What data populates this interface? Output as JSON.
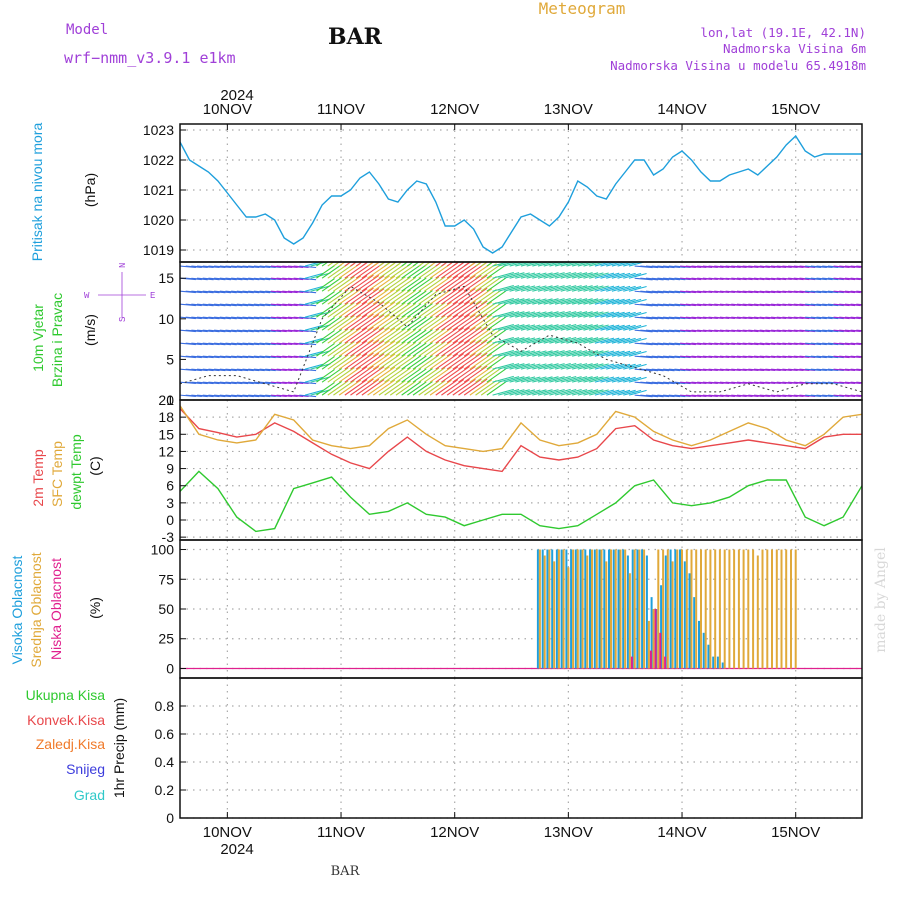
{
  "header": {
    "model_label": "Model",
    "model_value": "wrf−nmm_v3.9.1  e1km",
    "station_title": "BAR",
    "meteogram_title": "Meteogram",
    "location_coords": "lon,lat (19.1E, 42.1N)",
    "elevation": "Nadmorska Visina 6m",
    "model_elevation": "Nadmorska Visina u modelu 65.4918m",
    "year_top": "2024",
    "year_bottom": "2024",
    "footer_station": "BAR",
    "credit": "made by Angel"
  },
  "time_axis": {
    "start": "2024-11-09 14:00",
    "end": "2024-11-15 14:00",
    "tick_labels": [
      "10NOV",
      "11NOV",
      "12NOV",
      "13NOV",
      "14NOV",
      "15NOV"
    ]
  },
  "colors": {
    "pressure": "#1e9fdc",
    "temp2m": "#e8474b",
    "sfc": "#e0a93a",
    "dew": "#2fc92f",
    "high_cloud": "#1e9fdc",
    "mid_cloud": "#e0a93a",
    "low_cloud": "#e0208e",
    "precip_total": "#2fc92f",
    "precip_conv": "#e8474b",
    "precip_freezing": "#f07a2a",
    "precip_snow": "#3c3cdc",
    "precip_graupel": "#2fc9c9",
    "compass": "#a040d8",
    "wind_speed_line": "#333333"
  },
  "chart_data": [
    {
      "id": "pressure",
      "type": "line",
      "ylabel_left": "Pritisak na nivou mora",
      "ylabel_units": "(hPa)",
      "ylim": [
        1018.6,
        1023.2
      ],
      "yticks": [
        1019,
        1020,
        1021,
        1022,
        1023
      ],
      "grid": true,
      "x_hours": [
        0,
        2,
        4,
        6,
        8,
        10,
        12,
        14,
        16,
        18,
        20,
        22,
        24,
        26,
        28,
        30,
        32,
        34,
        36,
        38,
        40,
        42,
        44,
        46,
        48,
        50,
        52,
        54,
        56,
        58,
        60,
        62,
        64,
        66,
        68,
        70,
        72,
        74,
        76,
        78,
        80,
        82,
        84,
        86,
        88,
        90,
        92,
        94,
        96,
        98,
        100,
        102,
        104,
        106,
        108,
        110,
        112,
        114,
        116,
        118,
        120,
        122,
        124,
        126,
        128,
        130,
        132,
        134,
        136,
        138,
        140,
        142,
        144
      ],
      "series": [
        {
          "values": [
            1022.6,
            1022.0,
            1021.8,
            1021.6,
            1021.3,
            1020.9,
            1020.5,
            1020.1,
            1020.1,
            1020.2,
            1020.0,
            1019.4,
            1019.2,
            1019.4,
            1019.9,
            1020.5,
            1020.8,
            1020.8,
            1021.0,
            1021.4,
            1021.6,
            1021.2,
            1020.7,
            1020.6,
            1021.0,
            1021.3,
            1021.2,
            1020.6,
            1019.8,
            1019.8,
            1020.0,
            1019.7,
            1019.1,
            1018.9,
            1019.1,
            1019.6,
            1020.1,
            1020.2,
            1020.0,
            1019.8,
            1020.1,
            1020.6,
            1021.3,
            1021.1,
            1020.8,
            1020.7,
            1021.2,
            1021.6,
            1022.0,
            1022.0,
            1021.5,
            1021.7,
            1022.1,
            1022.3,
            1022.0,
            1021.6,
            1021.3,
            1021.3,
            1021.5,
            1021.6,
            1021.7,
            1021.5,
            1021.8,
            1022.1,
            1022.5,
            1022.8,
            1022.3,
            1022.1,
            1022.2,
            1022.2,
            1022.2,
            1022.2,
            1022.2
          ]
        }
      ]
    },
    {
      "id": "wind",
      "type": "line",
      "ylabel_left": "10m Vjetar",
      "ylabel_left2": "Brzina i Pravac",
      "ylabel_units": "(m/s)",
      "compass": {
        "w": "W",
        "e": "E",
        "n": "N",
        "s": "S"
      },
      "ylim": [
        0,
        17
      ],
      "yticks": [
        0,
        5,
        10,
        15
      ],
      "x_hours": [
        0,
        6,
        12,
        18,
        24,
        30,
        36,
        42,
        48,
        54,
        60,
        66,
        72,
        78,
        84,
        90,
        96,
        102,
        108,
        114,
        120,
        126,
        132,
        138,
        144
      ],
      "series": [
        {
          "values": [
            2,
            3,
            3,
            2,
            1,
            10,
            14,
            12,
            9,
            13,
            14,
            8,
            6,
            8,
            7,
            5,
            4,
            3,
            1,
            1,
            2,
            1,
            2,
            2,
            1
          ]
        }
      ]
    },
    {
      "id": "temperature",
      "type": "line",
      "ylabel_left": "2m Temp",
      "ylabel_left2": "SFC Temp",
      "ylabel_left3": "dewpt Temp",
      "ylabel_units": "(C)",
      "ylim": [
        -3.5,
        21
      ],
      "yticks": [
        -3,
        0,
        3,
        6,
        9,
        12,
        15,
        18,
        21
      ],
      "x_hours": [
        0,
        4,
        8,
        12,
        16,
        20,
        24,
        28,
        32,
        36,
        40,
        44,
        48,
        52,
        56,
        60,
        64,
        68,
        72,
        76,
        80,
        84,
        88,
        92,
        96,
        100,
        104,
        108,
        112,
        116,
        120,
        124,
        128,
        132,
        136,
        140,
        144
      ],
      "series": [
        {
          "name": "2m Temp",
          "values": [
            19.5,
            16.0,
            15.3,
            14.5,
            15.0,
            17.0,
            15.5,
            13.5,
            11.5,
            10.0,
            9.0,
            12.0,
            14.5,
            12.0,
            10.5,
            9.5,
            9.0,
            8.5,
            13.0,
            11.0,
            10.5,
            11.0,
            12.5,
            16.0,
            16.5,
            14.0,
            13.0,
            12.5,
            13.0,
            13.5,
            14.0,
            13.5,
            13.0,
            12.5,
            14.5,
            15.0,
            15.0
          ]
        },
        {
          "name": "SFC Temp",
          "values": [
            20.0,
            15.0,
            14.0,
            13.5,
            14.0,
            18.5,
            17.5,
            14.0,
            13.0,
            12.5,
            13.0,
            16.0,
            17.5,
            15.0,
            13.0,
            12.5,
            12.0,
            12.5,
            17.0,
            14.0,
            13.0,
            13.5,
            15.0,
            19.0,
            18.0,
            15.5,
            14.0,
            13.0,
            14.0,
            15.5,
            17.0,
            16.0,
            14.0,
            13.0,
            15.0,
            18.0,
            18.5
          ]
        },
        {
          "name": "dewpt Temp",
          "values": [
            5.0,
            8.5,
            5.5,
            0.5,
            -2.0,
            -1.5,
            5.5,
            6.5,
            7.5,
            4.0,
            1.0,
            1.5,
            3.0,
            1.0,
            0.5,
            -1.0,
            0.0,
            1.0,
            1.0,
            -1.0,
            -1.5,
            -1.0,
            1.0,
            3.0,
            6.0,
            7.0,
            3.0,
            2.5,
            3.0,
            4.0,
            6.0,
            7.0,
            7.0,
            0.5,
            -1.0,
            0.5,
            6.0
          ]
        }
      ]
    },
    {
      "id": "clouds",
      "type": "bar",
      "ylabel_left": "Visoka Oblacnost",
      "ylabel_left2": "Srednja Oblacnost",
      "ylabel_left3": "Niska Oblacnost",
      "ylabel_units": "(%)",
      "ylim": [
        -8,
        108
      ],
      "yticks": [
        0,
        25,
        50,
        75,
        100
      ],
      "x_hours": [
        76,
        77,
        78,
        79,
        80,
        81,
        82,
        83,
        84,
        85,
        86,
        87,
        88,
        89,
        90,
        91,
        92,
        93,
        94,
        95,
        96,
        97,
        98,
        99,
        100,
        101,
        102,
        103,
        104,
        105,
        106,
        107,
        108,
        109,
        110,
        111,
        112,
        113,
        114,
        115,
        116,
        117,
        118,
        119,
        120,
        121,
        122,
        123,
        124,
        125,
        126,
        127,
        128,
        129,
        130
      ],
      "series": [
        {
          "name": "Visoka Oblacnost",
          "values": [
            100,
            100,
            100,
            100,
            100,
            100,
            100,
            100,
            100,
            100,
            100,
            100,
            100,
            100,
            100,
            100,
            100,
            100,
            100,
            95,
            100,
            100,
            100,
            95,
            60,
            50,
            70,
            95,
            100,
            100,
            100,
            90,
            80,
            60,
            40,
            30,
            20,
            10,
            10,
            5,
            0,
            0,
            0,
            0,
            0,
            0,
            0,
            0,
            0,
            0,
            0,
            0,
            0,
            0,
            0
          ]
        },
        {
          "name": "Srednja Oblacnost",
          "values": [
            100,
            95,
            100,
            90,
            100,
            100,
            85,
            100,
            100,
            100,
            95,
            100,
            100,
            100,
            90,
            100,
            100,
            100,
            100,
            80,
            100,
            100,
            100,
            40,
            50,
            100,
            100,
            100,
            90,
            100,
            100,
            100,
            100,
            100,
            100,
            100,
            100,
            100,
            100,
            100,
            100,
            100,
            100,
            100,
            100,
            100,
            95,
            100,
            100,
            100,
            100,
            100,
            100,
            100,
            100
          ]
        },
        {
          "name": "Niska Oblacnost",
          "values": [
            0,
            0,
            0,
            0,
            0,
            0,
            0,
            0,
            0,
            0,
            0,
            0,
            0,
            0,
            0,
            0,
            0,
            0,
            0,
            10,
            0,
            0,
            0,
            15,
            50,
            30,
            10,
            0,
            0,
            0,
            0,
            0,
            0,
            0,
            0,
            0,
            0,
            0,
            0,
            0,
            0,
            0,
            0,
            0,
            0,
            0,
            0,
            0,
            0,
            0,
            0,
            0,
            0,
            0,
            0
          ]
        }
      ]
    },
    {
      "id": "precip",
      "type": "line",
      "ylabel_units": "1hr Precip (mm)",
      "ylim": [
        0,
        1.0
      ],
      "yticks": [
        0,
        0.2,
        0.4,
        0.6,
        0.8
      ],
      "legend": [
        "Ukupna Kisa",
        "Konvek.Kisa",
        "Zaledj.Kisa",
        "Snijeg",
        "Grad"
      ],
      "series": []
    }
  ]
}
